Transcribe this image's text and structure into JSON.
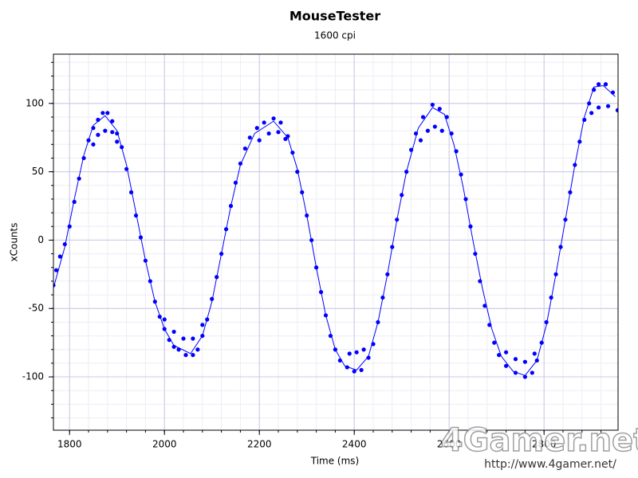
{
  "chart_data": {
    "type": "scatter",
    "title": "MouseTester",
    "subtitle": "1600 cpi",
    "x_label": "Time (ms)",
    "y_label": "xCounts",
    "xlim": [
      1766,
      2956
    ],
    "ylim": [
      -139,
      136
    ],
    "xticks": [
      1800,
      2000,
      2200,
      2400,
      2600,
      2800
    ],
    "yticks": [
      -100,
      -50,
      0,
      50,
      100
    ],
    "xticks_minor": [
      1800,
      1840,
      1880,
      1920,
      1960,
      2000,
      2040,
      2080,
      2120,
      2160,
      2200,
      2240,
      2280,
      2320,
      2360,
      2400,
      2440,
      2480,
      2520,
      2560,
      2600,
      2640,
      2680,
      2720,
      2760,
      2800,
      2840,
      2880,
      2920
    ],
    "yticks_minor": [
      -130,
      -120,
      -110,
      -100,
      -90,
      -80,
      -70,
      -60,
      -50,
      -40,
      -30,
      -20,
      -10,
      0,
      10,
      20,
      30,
      40,
      50,
      60,
      70,
      80,
      90,
      100,
      110,
      120,
      130
    ],
    "grid": true,
    "series": [
      {
        "type": "scatter",
        "color": "#0000ff",
        "x": [
          1766,
          1772,
          1780,
          1790,
          1800,
          1810,
          1820,
          1830,
          1840,
          1850,
          1860,
          1870,
          1880,
          1890,
          1900,
          1910,
          1920,
          1930,
          1940,
          1950,
          1960,
          1970,
          1980,
          1990,
          2000,
          2010,
          2020,
          2030,
          2045,
          2060,
          2070,
          2080,
          2090,
          2100,
          2110,
          2120,
          2130,
          2140,
          2150,
          2160,
          2170,
          2180,
          2195,
          2210,
          2230,
          2245,
          2260,
          2270,
          2280,
          2290,
          2300,
          2310,
          2320,
          2330,
          2340,
          2350,
          2360,
          2370,
          2385,
          2400,
          2415,
          2430,
          2440,
          2450,
          2460,
          2470,
          2480,
          2490,
          2500,
          2510,
          2520,
          2530,
          2545,
          2565,
          2580,
          2595,
          2605,
          2615,
          2625,
          2635,
          2645,
          2655,
          2665,
          2675,
          2685,
          2695,
          2705,
          2720,
          2740,
          2760,
          2775,
          2785,
          2795,
          2805,
          2815,
          2825,
          2835,
          2845,
          2855,
          2865,
          2875,
          2885,
          2895,
          2905,
          2915,
          2930,
          2945,
          1850,
          1860,
          1875,
          1890,
          1900,
          2000,
          2020,
          2040,
          2060,
          2080,
          2200,
          2220,
          2240,
          2255,
          2390,
          2405,
          2420,
          2540,
          2555,
          2570,
          2585,
          2720,
          2740,
          2760,
          2780,
          2900,
          2915,
          2935,
          2955
        ],
        "values": [
          -33,
          -22,
          -12,
          -3,
          10,
          28,
          45,
          60,
          73,
          82,
          88,
          93,
          93,
          87,
          78,
          68,
          52,
          35,
          18,
          2,
          -15,
          -30,
          -45,
          -56,
          -65,
          -73,
          -78,
          -80,
          -84,
          -84,
          -80,
          -70,
          -58,
          -43,
          -27,
          -10,
          8,
          25,
          42,
          56,
          67,
          75,
          82,
          86,
          89,
          86,
          76,
          64,
          50,
          35,
          18,
          0,
          -20,
          -38,
          -55,
          -70,
          -80,
          -88,
          -93,
          -96,
          -95,
          -86,
          -76,
          -60,
          -42,
          -25,
          -5,
          15,
          33,
          50,
          66,
          78,
          90,
          99,
          96,
          90,
          78,
          65,
          48,
          30,
          10,
          -10,
          -30,
          -48,
          -62,
          -75,
          -84,
          -92,
          -97,
          -100,
          -97,
          -88,
          -75,
          -60,
          -42,
          -25,
          -5,
          15,
          35,
          55,
          72,
          88,
          100,
          110,
          114,
          114,
          108,
          70,
          77,
          80,
          79,
          72,
          -58,
          -67,
          -72,
          -72,
          -62,
          73,
          78,
          79,
          74,
          -83,
          -82,
          -80,
          73,
          80,
          83,
          80,
          -82,
          -87,
          -89,
          -83,
          93,
          97,
          98,
          95
        ]
      },
      {
        "type": "line",
        "color": "#0000ff",
        "x": [
          1766,
          1790,
          1810,
          1830,
          1850,
          1875,
          1900,
          1920,
          1940,
          1960,
          1980,
          2000,
          2020,
          2055,
          2080,
          2100,
          2120,
          2140,
          2160,
          2190,
          2230,
          2260,
          2280,
          2300,
          2320,
          2340,
          2360,
          2380,
          2405,
          2430,
          2450,
          2470,
          2490,
          2510,
          2535,
          2565,
          2590,
          2610,
          2630,
          2650,
          2670,
          2690,
          2710,
          2735,
          2760,
          2785,
          2805,
          2825,
          2845,
          2865,
          2885,
          2905,
          2925,
          2950
        ],
        "values": [
          -35,
          -5,
          30,
          62,
          84,
          91,
          80,
          55,
          20,
          -15,
          -45,
          -65,
          -77,
          -83,
          -70,
          -45,
          -10,
          25,
          55,
          78,
          87,
          75,
          52,
          18,
          -20,
          -55,
          -80,
          -92,
          -95,
          -85,
          -60,
          -25,
          15,
          50,
          82,
          97,
          92,
          70,
          38,
          0,
          -35,
          -65,
          -85,
          -96,
          -99,
          -88,
          -62,
          -25,
          15,
          55,
          90,
          112,
          113,
          105
        ]
      }
    ],
    "watermark": {
      "logo": "4Gamer.net",
      "url": "http://www.4gamer.net/"
    }
  }
}
